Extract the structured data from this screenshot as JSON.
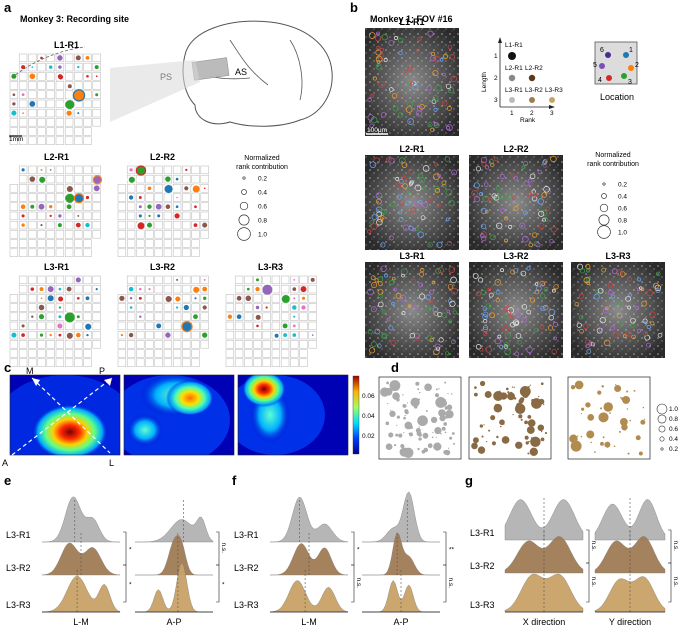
{
  "panels": {
    "a": {
      "label": "a",
      "subtitle": "Monkey 3: Recording site",
      "grids": [
        {
          "title": "L1-R1"
        },
        {
          "title": "L2-R1"
        },
        {
          "title": "L2-R2"
        },
        {
          "title": "L3-R1"
        },
        {
          "title": "L3-R2"
        },
        {
          "title": "L3-R3"
        }
      ],
      "scale_label": "1mm",
      "brain_labels": [
        "PS",
        "AS"
      ],
      "legend": {
        "title_line1": "Normalized",
        "title_line2": "rank contribution",
        "values": [
          "0.2",
          "0.4",
          "0.6",
          "0.8",
          "1.0"
        ]
      }
    },
    "b": {
      "label": "b",
      "subtitle": "Monkey 1: FOV #16",
      "images": [
        {
          "title": "L1-R1"
        },
        {
          "title": "L2-R1"
        },
        {
          "title": "L2-R2"
        },
        {
          "title": "L3-R1"
        },
        {
          "title": "L3-R2"
        },
        {
          "title": "L3-R3"
        }
      ],
      "scalebar": "100μm",
      "rank_axis": {
        "ylabel": "Length",
        "xlabel": "Rank",
        "yticks": [
          "1",
          "2",
          "3"
        ],
        "xticks": [
          "1",
          "2",
          "3"
        ],
        "dot_labels": [
          "L1-R1",
          "L2-R1",
          "L2-R2",
          "L3-R1",
          "L3-R2",
          "L3-R3"
        ]
      },
      "location": {
        "label": "Location",
        "numbers": [
          "6",
          "1",
          "5",
          "2",
          "4",
          "3"
        ]
      },
      "legend": {
        "title_line1": "Normalized",
        "title_line2": "rank contribution",
        "values": [
          "0.2",
          "0.4",
          "0.6",
          "0.8",
          "1.0"
        ]
      }
    },
    "c": {
      "label": "c",
      "axis_labels": {
        "M": "M",
        "P": "P",
        "A": "A",
        "L": "L"
      },
      "colorbar_ticks": [
        "0.06",
        "0.04",
        "0.02"
      ]
    },
    "d": {
      "label": "d",
      "legend_values": [
        "1.0",
        "0.8",
        "0.6",
        "0.4",
        "0.2"
      ]
    },
    "e": {
      "label": "e",
      "rows": [
        "L3-R1",
        "L3-R2",
        "L3-R3"
      ],
      "xlabels": [
        "L-M",
        "A-P"
      ],
      "sig": [
        "*",
        "*",
        "n.s.",
        "*"
      ]
    },
    "f": {
      "label": "f",
      "rows": [
        "L3-R1",
        "L3-R2",
        "L3-R3"
      ],
      "xlabels": [
        "L-M",
        "A-P"
      ],
      "sig": [
        "*",
        "n.s.",
        "**",
        "n.s."
      ]
    },
    "g": {
      "label": "g",
      "rows": [
        "L3-R1",
        "L3-R2",
        "L3-R3"
      ],
      "xlabels": [
        "X direction",
        "Y direction"
      ],
      "sig": [
        "n.s.",
        "n.s.",
        "n.s.",
        "n.s."
      ]
    }
  },
  "colors": {
    "grey": "#b3b3b3",
    "brown_mid": "#a07c55",
    "brown_light": "#c9a267",
    "gold": "#b28b4e"
  }
}
